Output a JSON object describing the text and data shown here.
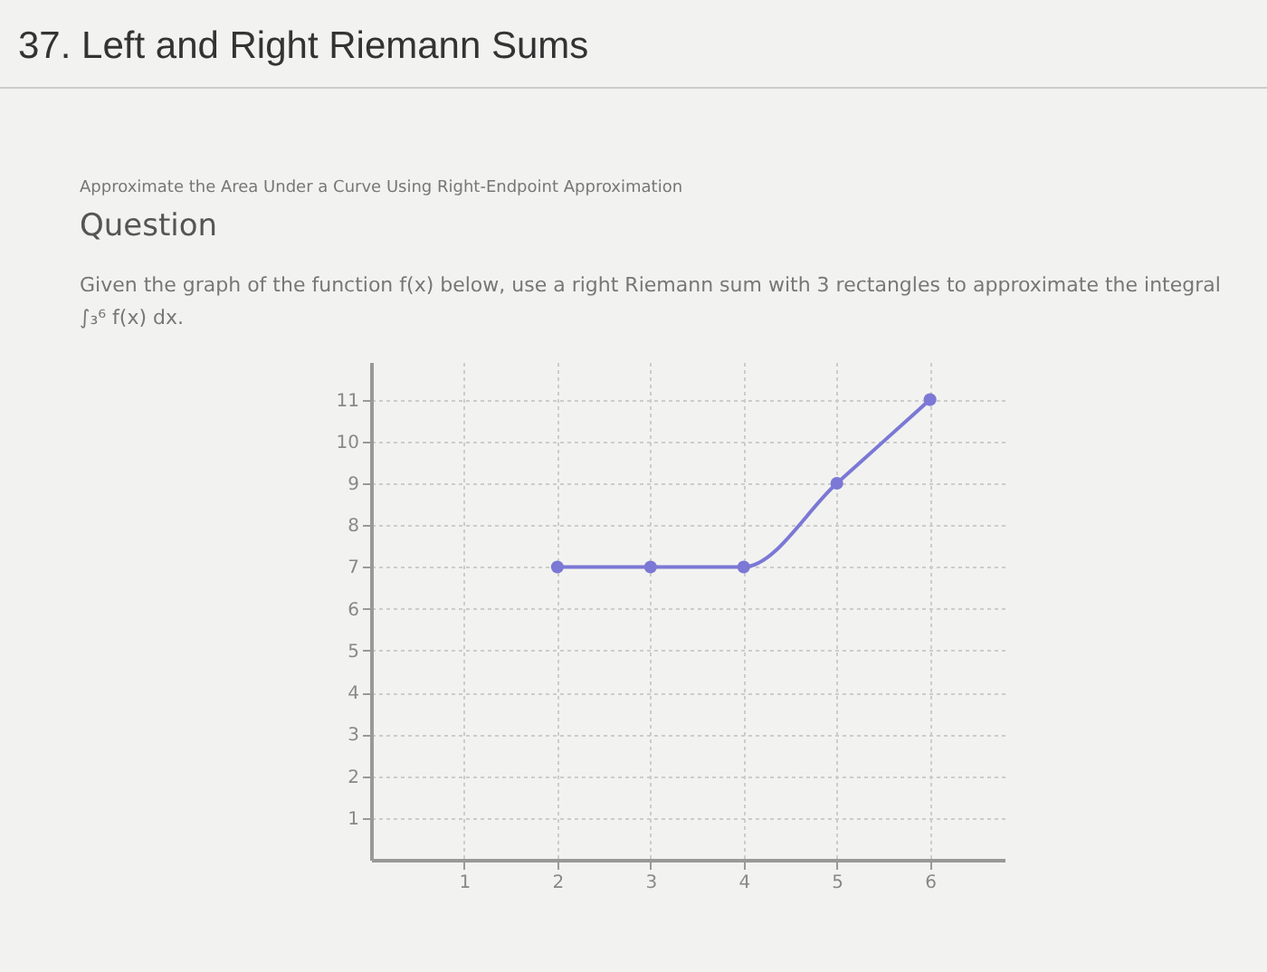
{
  "chart_data": {
    "type": "line",
    "title": "37. Left and Right Riemann Sums",
    "subtitle": "Approximate the Area Under a Curve Using Right-Endpoint Approximation",
    "annotations": [
      "Question",
      "Given the graph of the function f(x) below, use a right Riemann sum with 3 rectangles to approximate the integral ∫₃⁶ f(x) dx."
    ],
    "x": [
      2,
      3,
      4,
      5,
      6
    ],
    "series": [
      {
        "color": "#7b78d6",
        "values": [
          7,
          7,
          7,
          9,
          11
        ]
      }
    ],
    "xlim": [
      0,
      6.8
    ],
    "ylim": [
      0,
      11.9
    ],
    "xticks": [
      1,
      2,
      3,
      4,
      5,
      6
    ],
    "yticks": [
      1,
      2,
      3,
      4,
      5,
      6,
      7,
      8,
      9,
      10,
      11
    ],
    "grid": true,
    "marker": "circle",
    "line_style": "solid"
  }
}
